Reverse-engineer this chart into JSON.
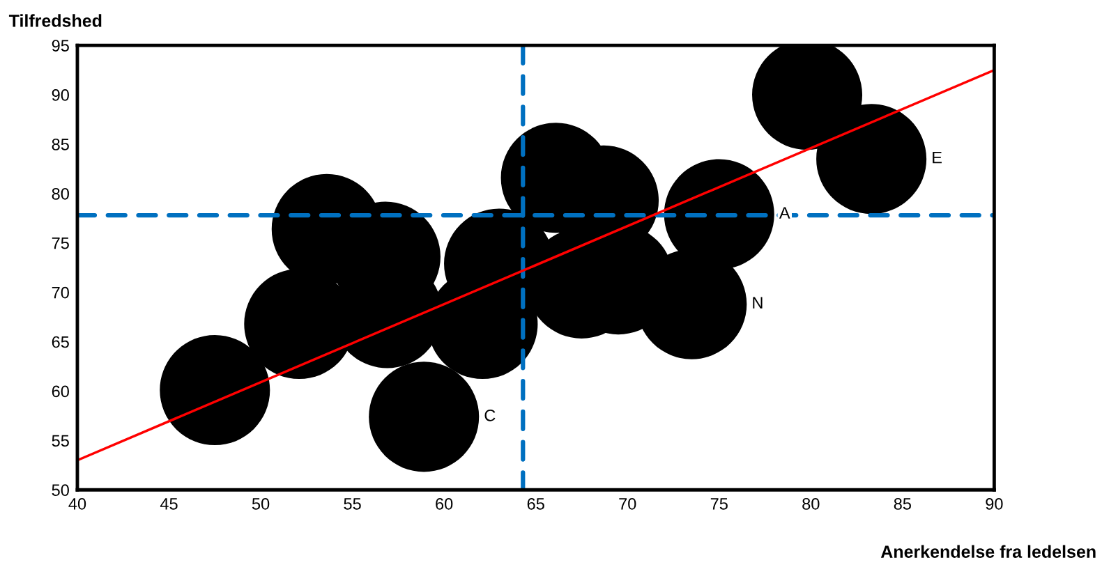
{
  "chart_data": {
    "type": "bubble",
    "xlabel": "Anerkendelse fra ledelsen",
    "ylabel": "Tilfredshed",
    "x": [
      47.5,
      52.1,
      53.6,
      56.8,
      56.9,
      58.9,
      63.0,
      62.1,
      66.1,
      67.5,
      68.7,
      69.5,
      73.5,
      75.0,
      79.8,
      83.3
    ],
    "series": [
      {
        "color": "#000000",
        "values": [
          60.1,
          66.8,
          76.4,
          73.6,
          67.9,
          57.4,
          72.9,
          66.8,
          81.6,
          70.9,
          79.3,
          71.3,
          68.8,
          77.9,
          90.0,
          83.5
        ],
        "sizes": [
          1,
          1,
          1,
          1,
          1,
          1,
          1,
          1,
          1,
          1,
          1,
          1,
          1,
          1,
          1,
          1
        ],
        "value_labels": [
          null,
          null,
          null,
          null,
          null,
          "C",
          null,
          null,
          null,
          null,
          null,
          null,
          "N",
          "A",
          null,
          "E"
        ]
      },
      {
        "type": "line",
        "color": "#ff0000",
        "x": [
          40,
          90
        ],
        "values": [
          53,
          92.5
        ]
      }
    ],
    "ref_lines": [
      {
        "axis": "x",
        "value": 64.3,
        "color": "#0070c0",
        "line_style": "dashed"
      },
      {
        "axis": "y",
        "value": 77.8,
        "color": "#0070c0",
        "line_style": "dashed"
      }
    ],
    "xlim": [
      40,
      90
    ],
    "xticks": [
      40,
      45,
      50,
      55,
      60,
      65,
      70,
      75,
      80,
      85,
      90
    ],
    "ylim": [
      50,
      95
    ],
    "yticks": [
      50,
      55,
      60,
      65,
      70,
      75,
      80,
      85,
      90,
      95
    ],
    "grid": false,
    "legend": false
  }
}
